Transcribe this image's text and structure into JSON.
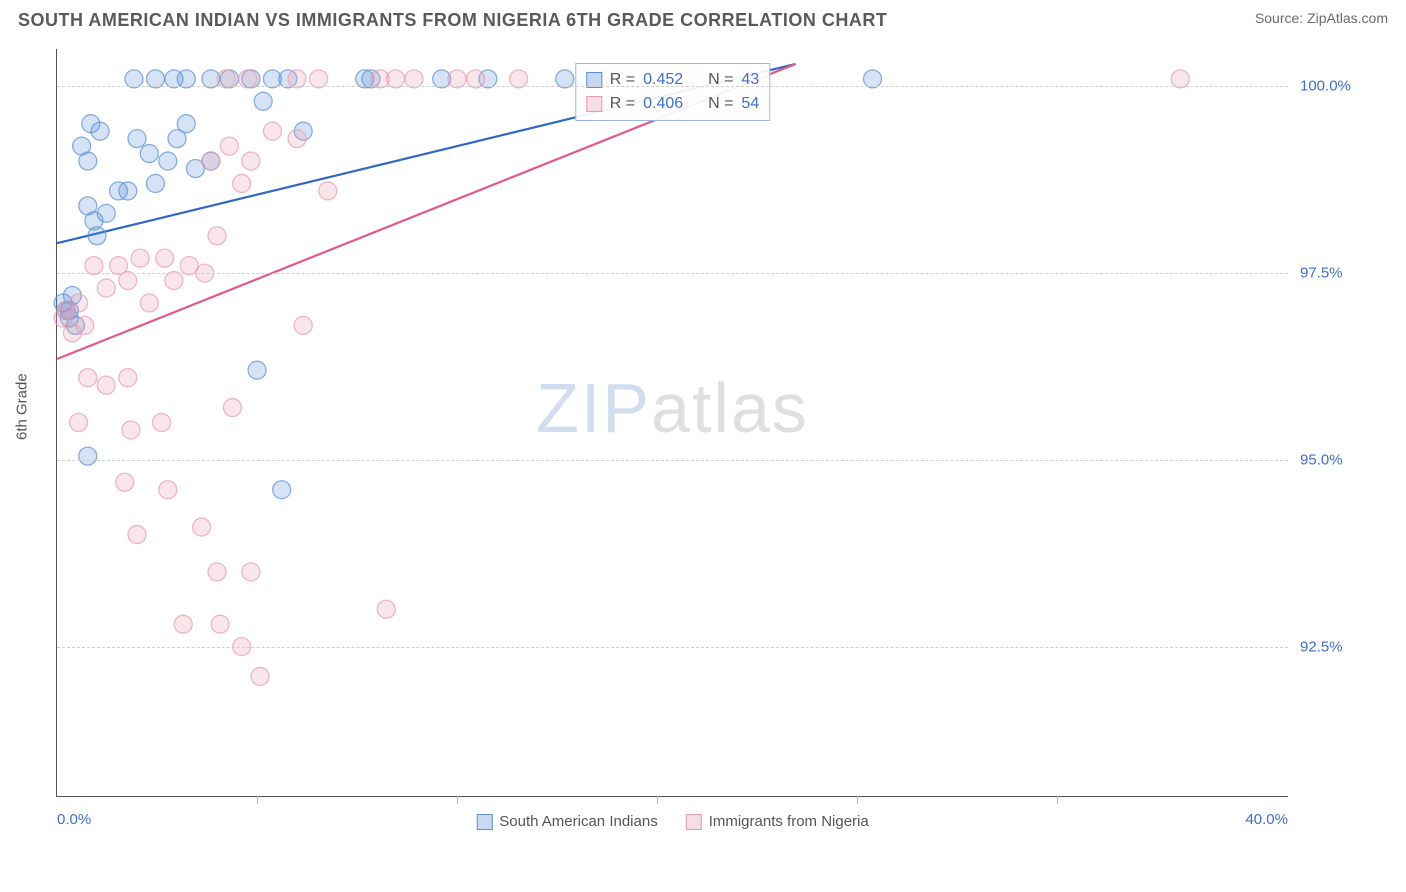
{
  "header": {
    "title": "SOUTH AMERICAN INDIAN VS IMMIGRANTS FROM NIGERIA 6TH GRADE CORRELATION CHART",
    "source_label": "Source: ZipAtlas.com"
  },
  "chart": {
    "type": "scatter",
    "y_axis_label": "6th Grade",
    "xlim": [
      0,
      40
    ],
    "ylim": [
      90.5,
      100.5
    ],
    "x_ticks": [
      0,
      40
    ],
    "x_tick_labels": [
      "0.0%",
      "40.0%"
    ],
    "x_minor_ticks": [
      6.5,
      13,
      19.5,
      26,
      32.5
    ],
    "y_ticks": [
      92.5,
      95.0,
      97.5,
      100.0
    ],
    "y_tick_labels": [
      "92.5%",
      "95.0%",
      "97.5%",
      "100.0%"
    ],
    "background_color": "#ffffff",
    "grid_color": "#cfcfcf",
    "marker_radius": 9,
    "marker_fill_opacity": 0.25,
    "marker_stroke_opacity": 0.7,
    "line_width": 2.2,
    "series": [
      {
        "id": "sai",
        "label": "South American Indians",
        "color": "#5a8fd6",
        "line_color": "#2f68c4",
        "r_value": "0.452",
        "n_value": "43",
        "trend": {
          "x1": 0,
          "y1": 97.9,
          "x2": 24,
          "y2": 100.3
        },
        "points": [
          [
            0.4,
            96.9
          ],
          [
            0.5,
            97.2
          ],
          [
            0.4,
            97.0
          ],
          [
            0.6,
            96.8
          ],
          [
            0.2,
            97.1
          ],
          [
            0.3,
            97.0
          ],
          [
            1.0,
            98.4
          ],
          [
            1.3,
            98.0
          ],
          [
            1.6,
            98.3
          ],
          [
            1.2,
            98.2
          ],
          [
            2.0,
            98.6
          ],
          [
            2.3,
            98.6
          ],
          [
            0.8,
            99.2
          ],
          [
            1.0,
            99.0
          ],
          [
            1.1,
            99.5
          ],
          [
            1.4,
            99.4
          ],
          [
            2.6,
            99.3
          ],
          [
            3.0,
            99.1
          ],
          [
            3.2,
            98.7
          ],
          [
            3.6,
            99.0
          ],
          [
            3.9,
            99.3
          ],
          [
            4.2,
            99.5
          ],
          [
            4.5,
            98.9
          ],
          [
            5.0,
            99.0
          ],
          [
            2.5,
            100.1
          ],
          [
            3.2,
            100.1
          ],
          [
            3.8,
            100.1
          ],
          [
            4.2,
            100.1
          ],
          [
            5.0,
            100.1
          ],
          [
            5.6,
            100.1
          ],
          [
            6.3,
            100.1
          ],
          [
            6.7,
            99.8
          ],
          [
            7.0,
            100.1
          ],
          [
            7.5,
            100.1
          ],
          [
            8.0,
            99.4
          ],
          [
            10.0,
            100.1
          ],
          [
            10.2,
            100.1
          ],
          [
            12.5,
            100.1
          ],
          [
            14.0,
            100.1
          ],
          [
            16.5,
            100.1
          ],
          [
            17.2,
            100.1
          ],
          [
            26.5,
            100.1
          ],
          [
            1.0,
            95.05
          ],
          [
            7.3,
            94.6
          ],
          [
            6.5,
            96.2
          ]
        ]
      },
      {
        "id": "nigeria",
        "label": "Immigrants from Nigeria",
        "color": "#e79ab0",
        "line_color": "#e15a85",
        "r_value": "0.406",
        "n_value": "54",
        "trend": {
          "x1": 0,
          "y1": 96.35,
          "x2": 24,
          "y2": 100.3
        },
        "points": [
          [
            0.3,
            97.0
          ],
          [
            0.5,
            96.7
          ],
          [
            0.7,
            97.1
          ],
          [
            0.9,
            96.8
          ],
          [
            0.2,
            96.9
          ],
          [
            1.2,
            97.6
          ],
          [
            1.6,
            97.3
          ],
          [
            2.0,
            97.6
          ],
          [
            2.3,
            97.4
          ],
          [
            2.7,
            97.7
          ],
          [
            3.0,
            97.1
          ],
          [
            3.5,
            97.7
          ],
          [
            3.8,
            97.4
          ],
          [
            4.3,
            97.6
          ],
          [
            4.8,
            97.5
          ],
          [
            5.2,
            98.0
          ],
          [
            8.8,
            98.6
          ],
          [
            8.0,
            96.8
          ],
          [
            1.0,
            96.1
          ],
          [
            1.6,
            96.0
          ],
          [
            2.3,
            96.1
          ],
          [
            2.4,
            95.4
          ],
          [
            3.4,
            95.5
          ],
          [
            0.7,
            95.5
          ],
          [
            2.2,
            94.7
          ],
          [
            3.6,
            94.6
          ],
          [
            5.7,
            95.7
          ],
          [
            2.6,
            94.0
          ],
          [
            4.7,
            94.1
          ],
          [
            5.2,
            93.5
          ],
          [
            6.3,
            93.5
          ],
          [
            4.1,
            92.8
          ],
          [
            5.3,
            92.8
          ],
          [
            6.0,
            92.5
          ],
          [
            6.6,
            92.1
          ],
          [
            10.7,
            93.0
          ],
          [
            5.0,
            99.0
          ],
          [
            5.6,
            99.2
          ],
          [
            6.3,
            99.0
          ],
          [
            7.0,
            99.4
          ],
          [
            7.8,
            99.3
          ],
          [
            6.0,
            98.7
          ],
          [
            5.5,
            100.1
          ],
          [
            6.2,
            100.1
          ],
          [
            7.8,
            100.1
          ],
          [
            8.5,
            100.1
          ],
          [
            10.5,
            100.1
          ],
          [
            11.0,
            100.1
          ],
          [
            11.6,
            100.1
          ],
          [
            13.0,
            100.1
          ],
          [
            13.6,
            100.1
          ],
          [
            15.0,
            100.1
          ],
          [
            17.8,
            100.1
          ],
          [
            18.5,
            100.1
          ],
          [
            19.3,
            100.1
          ],
          [
            20.5,
            100.1
          ],
          [
            36.5,
            100.1
          ]
        ]
      }
    ],
    "stats_box": {
      "r_label": "R =",
      "n_label": "N ="
    },
    "watermark": {
      "part1": "ZIP",
      "part2": "atlas"
    }
  }
}
